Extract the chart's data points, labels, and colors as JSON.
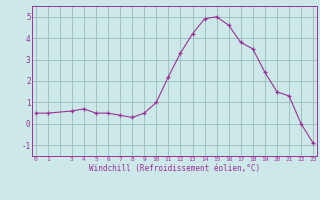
{
  "x": [
    0,
    1,
    3,
    4,
    5,
    6,
    7,
    8,
    9,
    10,
    11,
    12,
    13,
    14,
    15,
    16,
    17,
    18,
    19,
    20,
    21,
    22,
    23
  ],
  "y": [
    0.5,
    0.5,
    0.6,
    0.7,
    0.5,
    0.5,
    0.4,
    0.3,
    0.5,
    1.0,
    2.2,
    3.3,
    4.2,
    4.9,
    5.0,
    4.6,
    3.8,
    3.5,
    2.4,
    1.5,
    1.3,
    0.0,
    -0.9
  ],
  "line_color": "#993399",
  "bg_color": "#cce8e8",
  "grid_color": "#99bbbb",
  "xlabel": "Windchill (Refroidissement éolien,°C)",
  "yticks": [
    -1,
    0,
    1,
    2,
    3,
    4,
    5
  ],
  "xtick_labels": [
    "0",
    "1",
    "",
    "3",
    "4",
    "5",
    "6",
    "7",
    "8",
    "9",
    "10",
    "11",
    "12",
    "13",
    "14",
    "15",
    "16",
    "17",
    "18",
    "19",
    "20",
    "21",
    "22",
    "23"
  ],
  "xtick_positions": [
    0,
    1,
    2,
    3,
    4,
    5,
    6,
    7,
    8,
    9,
    10,
    11,
    12,
    13,
    14,
    15,
    16,
    17,
    18,
    19,
    20,
    21,
    22,
    23
  ],
  "ylim": [
    -1.5,
    5.5
  ],
  "xlim": [
    -0.3,
    23.3
  ]
}
